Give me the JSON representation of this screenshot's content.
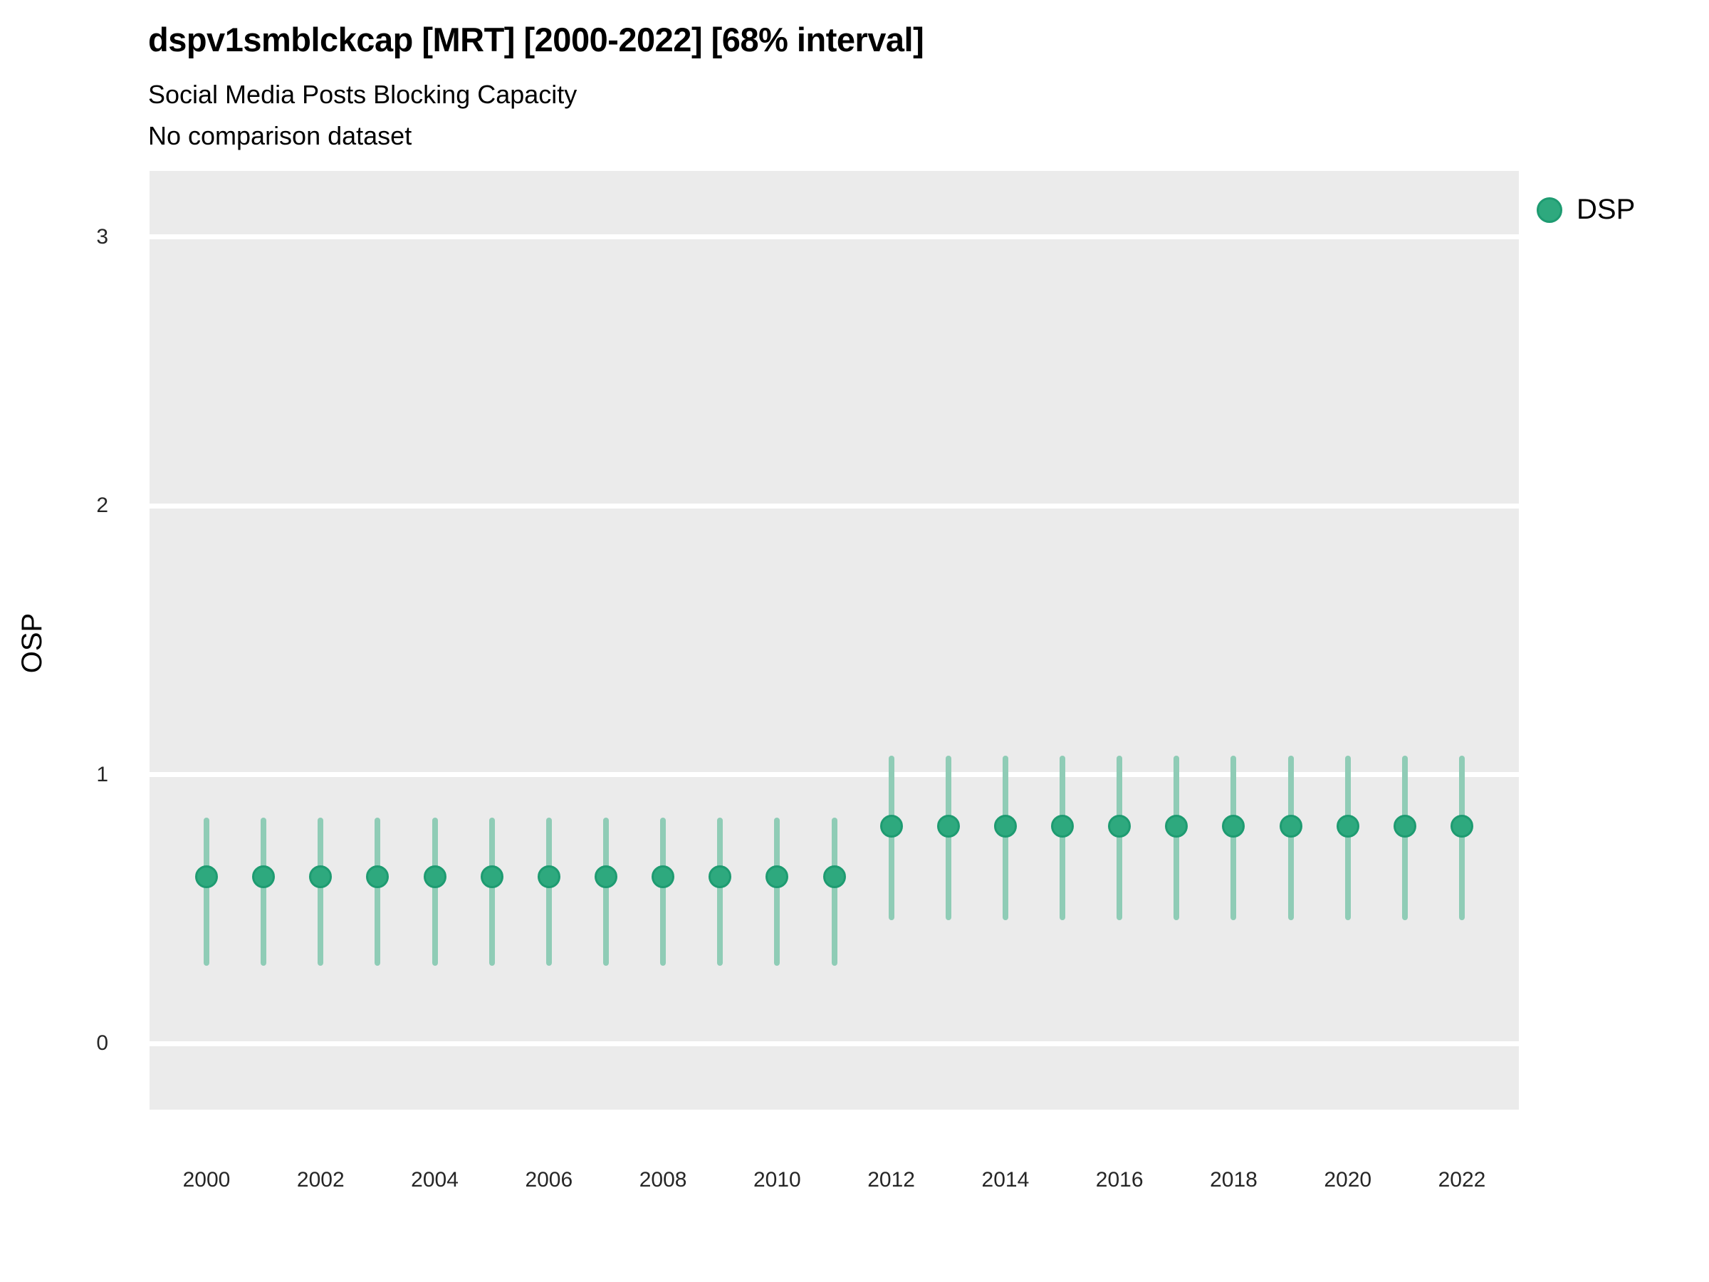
{
  "header": {
    "title": "dspv1smblckcap [MRT] [2000-2022] [68% interval]",
    "subtitle": "Social Media Posts Blocking Capacity",
    "note": "No comparison dataset"
  },
  "y_axis": {
    "label": "OSP"
  },
  "legend": {
    "items": [
      {
        "label": "DSP",
        "color": "#2EA97E",
        "border": "#1E9B71"
      }
    ]
  },
  "chart_data": {
    "type": "scatter",
    "title": "dspv1smblckcap [MRT] [2000-2022] [68% interval]",
    "subtitle": "Social Media Posts Blocking Capacity",
    "caption": "No comparison dataset",
    "interval": "68%",
    "xlabel": "",
    "ylabel": "OSP",
    "x": [
      2000,
      2001,
      2002,
      2003,
      2004,
      2005,
      2006,
      2007,
      2008,
      2009,
      2010,
      2011,
      2012,
      2013,
      2014,
      2015,
      2016,
      2017,
      2018,
      2019,
      2020,
      2021,
      2022
    ],
    "series": [
      {
        "name": "DSP",
        "values": [
          0.62,
          0.62,
          0.62,
          0.62,
          0.62,
          0.62,
          0.62,
          0.62,
          0.62,
          0.62,
          0.62,
          0.62,
          0.81,
          0.81,
          0.81,
          0.81,
          0.81,
          0.81,
          0.81,
          0.81,
          0.81,
          0.81,
          0.81
        ],
        "lower": [
          0.29,
          0.29,
          0.29,
          0.29,
          0.29,
          0.29,
          0.29,
          0.29,
          0.29,
          0.29,
          0.29,
          0.29,
          0.46,
          0.46,
          0.46,
          0.46,
          0.46,
          0.46,
          0.46,
          0.46,
          0.46,
          0.46,
          0.46
        ],
        "upper": [
          0.84,
          0.84,
          0.84,
          0.84,
          0.84,
          0.84,
          0.84,
          0.84,
          0.84,
          0.84,
          0.84,
          0.84,
          1.07,
          1.07,
          1.07,
          1.07,
          1.07,
          1.07,
          1.07,
          1.07,
          1.07,
          1.07,
          1.07
        ]
      }
    ],
    "ylim": [
      -0.245,
      3.245
    ],
    "yticks": [
      0,
      1,
      2,
      3
    ],
    "xticks": [
      2000,
      2002,
      2004,
      2006,
      2008,
      2010,
      2012,
      2014,
      2016,
      2018,
      2020,
      2022
    ],
    "grid": "major-horizontal-only",
    "legend_position": "right",
    "colors": {
      "point": "#2EA97E",
      "point_border": "#1E9B71",
      "interval_bar": "#8FCCB6",
      "panel_bg": "#EBEBEB",
      "gridline": "#FFFFFF"
    }
  }
}
